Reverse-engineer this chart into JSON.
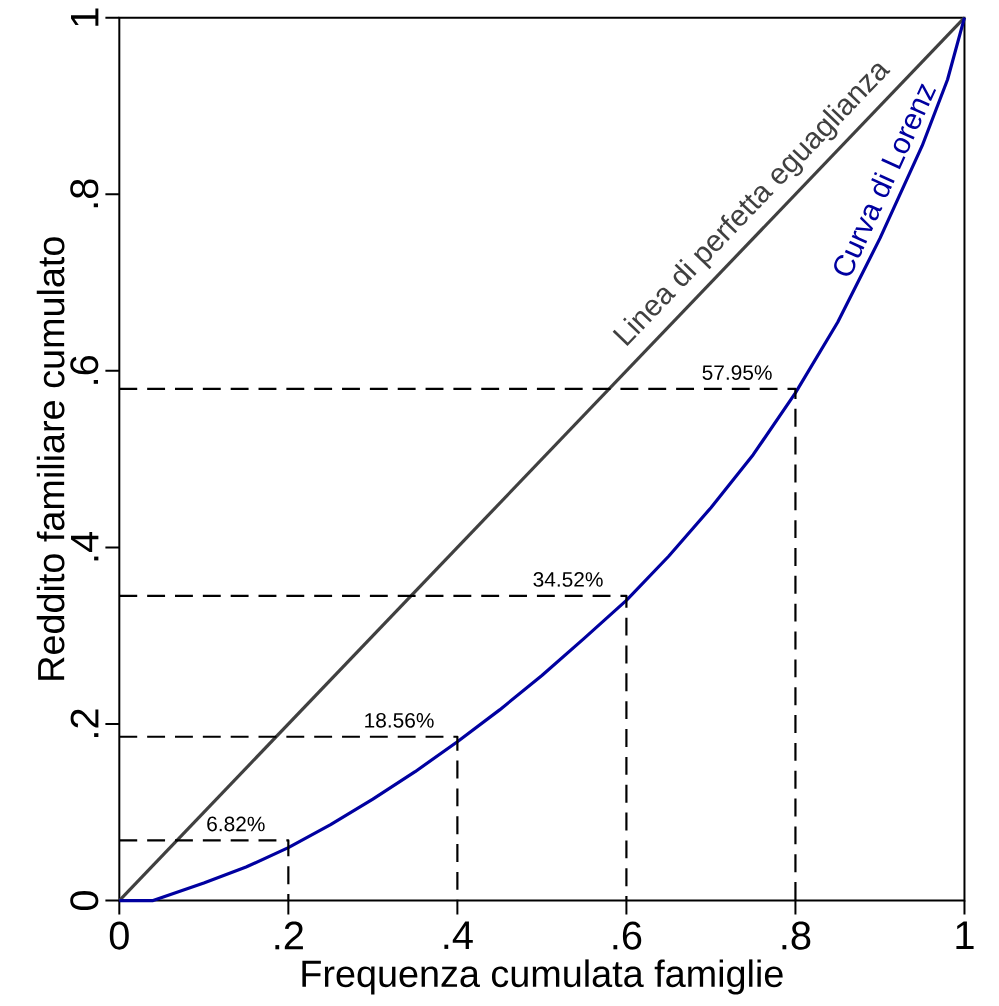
{
  "chart_data": {
    "type": "line",
    "xlabel": "Frequenza cumulata famiglie",
    "ylabel": "Reddito familiare cumulato",
    "xlim": [
      0,
      1
    ],
    "ylim": [
      0,
      1
    ],
    "xticks": [
      0,
      {
        "value": 0.2,
        "label": ".2"
      },
      {
        "value": 0.4,
        "label": ".4"
      },
      {
        "value": 0.6,
        "label": ".6"
      },
      {
        "value": 0.8,
        "label": ".8"
      },
      1
    ],
    "yticks": [
      0,
      {
        "value": 0.2,
        "label": ".2"
      },
      {
        "value": 0.4,
        "label": ".4"
      },
      {
        "value": 0.6,
        "label": ".6"
      },
      {
        "value": 0.8,
        "label": ".8"
      },
      1
    ],
    "series": [
      {
        "name": "Linea di perfetta eguaglianza",
        "color": "#404040",
        "x": [
          0,
          1
        ],
        "values": [
          0,
          1
        ]
      },
      {
        "name": "Curva di Lorenz",
        "color": "#0000a0",
        "x": [
          0,
          0.04,
          0.1,
          0.15,
          0.2,
          0.25,
          0.3,
          0.35,
          0.4,
          0.45,
          0.5,
          0.55,
          0.6,
          0.65,
          0.7,
          0.75,
          0.8,
          0.85,
          0.9,
          0.95,
          0.98,
          1
        ],
        "values": [
          0,
          0,
          0.02,
          0.038,
          0.06,
          0.086,
          0.115,
          0.146,
          0.18,
          0.216,
          0.255,
          0.297,
          0.34,
          0.39,
          0.445,
          0.505,
          0.575,
          0.655,
          0.75,
          0.855,
          0.93,
          1
        ]
      },
      {
        "color": "#000000",
        "line_style": "dashed",
        "x": [
          0,
          0.2,
          0.2
        ],
        "values": [
          0.0682,
          0.0682,
          0
        ]
      },
      {
        "color": "#000000",
        "line_style": "dashed",
        "x": [
          0,
          0.4,
          0.4
        ],
        "values": [
          0.1856,
          0.1856,
          0
        ]
      },
      {
        "color": "#000000",
        "line_style": "dashed",
        "x": [
          0,
          0.6,
          0.6
        ],
        "values": [
          0.3452,
          0.3452,
          0
        ]
      },
      {
        "color": "#000000",
        "line_style": "dashed",
        "x": [
          0,
          0.8,
          0.8
        ],
        "values": [
          0.5795,
          0.5795,
          0
        ]
      }
    ],
    "annotations": [
      {
        "text": "6.82%",
        "x": 0.2,
        "y": 0.0682
      },
      {
        "text": "18.56%",
        "x": 0.4,
        "y": 0.1856
      },
      {
        "text": "34.52%",
        "x": 0.6,
        "y": 0.3452
      },
      {
        "text": "57.95%",
        "x": 0.8,
        "y": 0.5795
      }
    ]
  }
}
